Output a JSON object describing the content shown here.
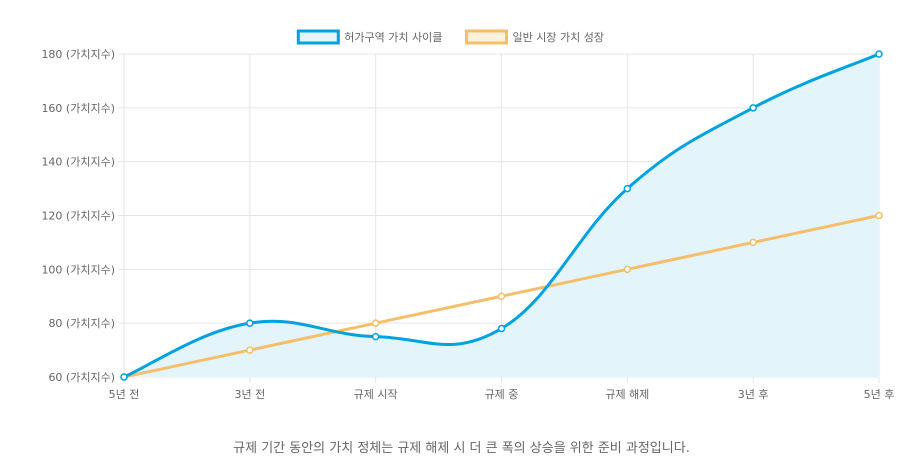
{
  "chart_data": {
    "type": "line",
    "categories": [
      "5년 전",
      "3년 전",
      "규제 시작",
      "규제 중",
      "규제 해제",
      "3년 후",
      "5년 후"
    ],
    "series": [
      {
        "name": "허가구역 가치 사이클",
        "values": [
          60,
          80,
          75,
          78,
          130,
          160,
          180
        ],
        "color": "#00a3e0",
        "fill": "#e3f5fb",
        "filled": true
      },
      {
        "name": "일반 시장 가치 성장",
        "values": [
          60,
          70,
          80,
          90,
          100,
          110,
          120
        ],
        "color": "#f5be6a",
        "filled": false
      }
    ],
    "ylim": [
      60,
      180
    ],
    "yticks": [
      60,
      80,
      100,
      120,
      140,
      160,
      180
    ],
    "ytick_suffix": " (가치지수)",
    "grid": true,
    "legend": "top-center"
  },
  "caption": "규제 기간 동안의 가치 정체는 규제 해제 시 더 큰 폭의 상승을 위한 준비 과정입니다."
}
